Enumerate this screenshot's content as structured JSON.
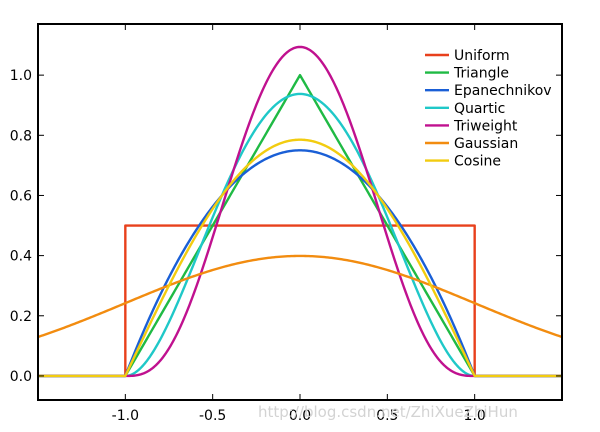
{
  "chart_data": {
    "type": "line",
    "title": "",
    "xlabel": "",
    "ylabel": "",
    "xlim": [
      -1.5,
      1.5
    ],
    "ylim": [
      -0.08,
      1.17
    ],
    "x_ticks": [
      -1.0,
      -0.5,
      0.0,
      0.5,
      1.0
    ],
    "x_tick_labels": [
      "-1.0",
      "-0.5",
      "0.0",
      "0.5",
      "1.0"
    ],
    "y_ticks": [
      0.0,
      0.2,
      0.4,
      0.6,
      0.8,
      1.0
    ],
    "y_tick_labels": [
      "0.0",
      "0.2",
      "0.4",
      "0.6",
      "0.8",
      "1.0"
    ],
    "grid": false,
    "legend_position": "top-right",
    "series": [
      {
        "name": "Uniform",
        "color": "#e8401c",
        "kernel": "uniform",
        "support": [
          -1,
          1
        ]
      },
      {
        "name": "Triangle",
        "color": "#1fba44",
        "kernel": "triangle",
        "support": [
          -1,
          1
        ]
      },
      {
        "name": "Epanechnikov",
        "color": "#1a5fd6",
        "kernel": "epanechnikov",
        "support": [
          -1,
          1
        ]
      },
      {
        "name": "Quartic",
        "color": "#1fc8c8",
        "kernel": "quartic",
        "support": [
          -1,
          1
        ]
      },
      {
        "name": "Triweight",
        "color": "#c0118f",
        "kernel": "triweight",
        "support": [
          -1,
          1
        ]
      },
      {
        "name": "Gaussian",
        "color": "#f28c10",
        "kernel": "gaussian",
        "support": [
          -1.5,
          1.5
        ]
      },
      {
        "name": "Cosine",
        "color": "#f2cc10",
        "kernel": "cosine",
        "support": [
          -1,
          1
        ]
      }
    ],
    "watermark": "http://blog.csdn.net/ZhiXueZhiHun"
  }
}
